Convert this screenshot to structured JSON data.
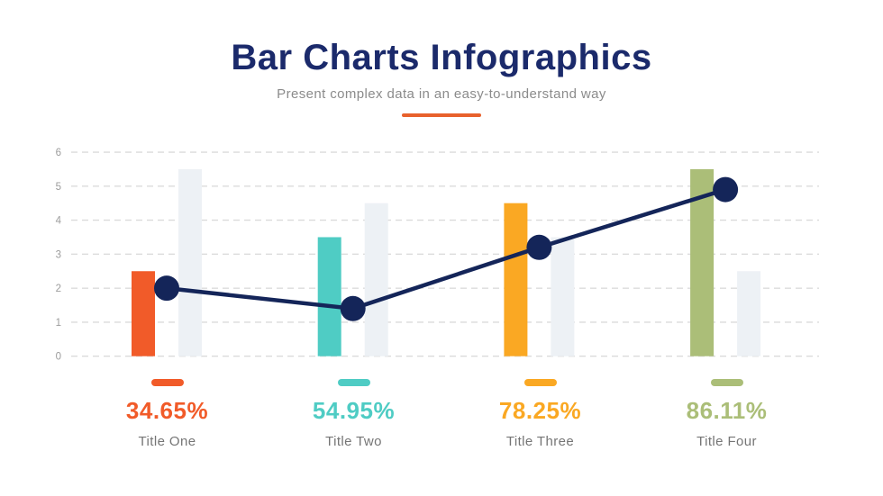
{
  "header": {
    "title": "Bar Charts Infographics",
    "subtitle": "Present complex data in an easy-to-understand way"
  },
  "colors": {
    "title": "#1b2a6b",
    "accent": "#e8612c",
    "line": "#142559",
    "ghost_bar": "#edf1f5",
    "grid": "#dbdbdb",
    "tick_label": "#9c9c9c"
  },
  "chart_data": {
    "type": "bar",
    "categories": [
      "Title One",
      "Title Two",
      "Title Three",
      "Title Four"
    ],
    "series": [
      {
        "name": "colored-bars",
        "type": "bar",
        "values": [
          2.5,
          3.5,
          4.5,
          5.5
        ],
        "colors": [
          "#f15b29",
          "#4fccc4",
          "#faa823",
          "#abbe78"
        ]
      },
      {
        "name": "ghost-bars",
        "type": "bar",
        "values": [
          5.5,
          4.5,
          3.5,
          2.5
        ],
        "color": "#edf1f5"
      },
      {
        "name": "trend-line",
        "type": "line",
        "values": [
          2,
          1.4,
          3.2,
          4.9
        ],
        "color": "#142559"
      }
    ],
    "title": "Bar Charts Infographics",
    "xlabel": "",
    "ylabel": "",
    "ylim": [
      0,
      6
    ],
    "yticks": [
      0,
      1,
      2,
      3,
      4,
      5,
      6
    ],
    "grid": "horizontal-dashed",
    "legend_position": "none"
  },
  "legend": {
    "items": [
      {
        "percent": "34.65%",
        "label": "Title One",
        "color": "#f15b29"
      },
      {
        "percent": "54.95%",
        "label": "Title Two",
        "color": "#4fccc4"
      },
      {
        "percent": "78.25%",
        "label": "Title Three",
        "color": "#faa823"
      },
      {
        "percent": "86.11%",
        "label": "Title Four",
        "color": "#abbe78"
      }
    ]
  }
}
